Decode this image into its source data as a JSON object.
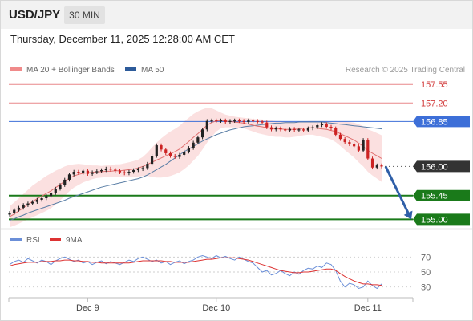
{
  "header": {
    "symbol": "USD/JPY",
    "timeframe": "30 MIN",
    "datetime": "Thursday, December 11, 2025 12:28:00 AM CET"
  },
  "legend": {
    "ma20": "MA 20 + Bollinger Bands",
    "ma50": "MA 50",
    "credit": "Research © 2025 Trading Central"
  },
  "rsi_legend": {
    "rsi": "RSI",
    "ma9": "9MA"
  },
  "colors": {
    "resistance": "#e8878a",
    "pivot": "#3d6fd8",
    "support": "#1a7a1a",
    "current": "#333333",
    "ma20": "#e07070",
    "ma50": "#5b7fa6",
    "bollinger": "#fbe0e0",
    "arrow": "#2f5fa8",
    "candle_up": "#222222",
    "candle_down": "#cc2222",
    "rsi": "#6b8fd8",
    "rsi_ma": "#dd3333"
  },
  "chart_data": [
    {
      "type": "candlestick",
      "title": "USD/JPY 30 MIN",
      "x_ticks": [
        "Dec 9",
        "Dec 10",
        "Dec 11"
      ],
      "ylim": [
        154.93,
        157.72
      ],
      "levels": [
        {
          "label": "157.55",
          "value": 157.55,
          "kind": "resistance"
        },
        {
          "label": "157.20",
          "value": 157.2,
          "kind": "resistance"
        },
        {
          "label": "156.85",
          "value": 156.85,
          "kind": "pivot"
        },
        {
          "label": "156.00",
          "value": 156.0,
          "kind": "current"
        },
        {
          "label": "155.45",
          "value": 155.45,
          "kind": "support"
        },
        {
          "label": "155.00",
          "value": 155.0,
          "kind": "support"
        }
      ],
      "close": [
        155.12,
        155.18,
        155.22,
        155.27,
        155.3,
        155.33,
        155.37,
        155.4,
        155.44,
        155.5,
        155.58,
        155.65,
        155.75,
        155.85,
        155.9,
        155.88,
        155.92,
        155.86,
        155.89,
        155.91,
        155.93,
        155.96,
        155.94,
        155.92,
        155.89,
        155.87,
        155.9,
        155.93,
        155.95,
        155.97,
        156.05,
        156.2,
        156.4,
        156.32,
        156.25,
        156.2,
        156.18,
        156.22,
        156.28,
        156.35,
        156.45,
        156.55,
        156.7,
        156.86,
        156.87,
        156.86,
        156.87,
        156.84,
        156.86,
        156.87,
        156.86,
        156.84,
        156.87,
        156.86,
        156.85,
        156.83,
        156.74,
        156.7,
        156.72,
        156.7,
        156.68,
        156.71,
        156.69,
        156.7,
        156.68,
        156.72,
        156.74,
        156.78,
        156.8,
        156.75,
        156.72,
        156.6,
        156.52,
        156.46,
        156.42,
        156.38,
        156.3,
        156.5,
        156.15,
        155.98,
        156.02,
        156.0
      ],
      "ma20": [
        155.05,
        155.1,
        155.16,
        155.22,
        155.28,
        155.34,
        155.39,
        155.44,
        155.49,
        155.54,
        155.6,
        155.66,
        155.72,
        155.78,
        155.82,
        155.85,
        155.87,
        155.88,
        155.89,
        155.9,
        155.9,
        155.91,
        155.91,
        155.92,
        155.92,
        155.93,
        155.94,
        155.95,
        155.97,
        156.0,
        156.04,
        156.08,
        156.12,
        156.16,
        156.2,
        156.24,
        156.28,
        156.33,
        156.4,
        156.47,
        156.55,
        156.62,
        156.7,
        156.78,
        156.83,
        156.86,
        156.87,
        156.86,
        156.85,
        156.84,
        156.83,
        156.82,
        156.8,
        156.78,
        156.76,
        156.75,
        156.73,
        156.72,
        156.71,
        156.71,
        156.7,
        156.7,
        156.7,
        156.71,
        156.72,
        156.73,
        156.73,
        156.72,
        156.71,
        156.7,
        156.68,
        156.66,
        156.62,
        156.58,
        156.54,
        156.5,
        156.44,
        156.38,
        156.3,
        156.25,
        156.2,
        156.15
      ],
      "ma50": [
        154.98,
        155.01,
        155.05,
        155.08,
        155.12,
        155.15,
        155.18,
        155.21,
        155.24,
        155.27,
        155.3,
        155.33,
        155.36,
        155.4,
        155.43,
        155.46,
        155.49,
        155.52,
        155.55,
        155.58,
        155.61,
        155.63,
        155.65,
        155.67,
        155.69,
        155.71,
        155.73,
        155.75,
        155.77,
        155.8,
        155.84,
        155.89,
        155.94,
        155.99,
        156.04,
        156.1,
        156.16,
        156.22,
        156.28,
        156.33,
        156.38,
        156.43,
        156.48,
        156.52,
        156.56,
        156.6,
        156.63,
        156.66,
        156.69,
        156.71,
        156.73,
        156.75,
        156.76,
        156.77,
        156.78,
        156.79,
        156.8,
        156.81,
        156.82,
        156.82,
        156.83,
        156.83,
        156.83,
        156.84,
        156.84,
        156.84,
        156.84,
        156.84,
        156.84,
        156.83,
        156.82,
        156.81,
        156.8,
        156.79,
        156.78,
        156.77,
        156.76,
        156.75,
        156.74,
        156.73,
        156.72,
        156.71
      ],
      "bb_width": [
        0.2,
        0.22,
        0.24,
        0.26,
        0.28,
        0.3,
        0.31,
        0.32,
        0.33,
        0.33,
        0.32,
        0.3,
        0.28,
        0.25,
        0.22,
        0.2,
        0.17,
        0.15,
        0.13,
        0.12,
        0.11,
        0.11,
        0.11,
        0.12,
        0.12,
        0.13,
        0.14,
        0.15,
        0.16,
        0.18,
        0.22,
        0.28,
        0.33,
        0.37,
        0.4,
        0.42,
        0.43,
        0.44,
        0.45,
        0.45,
        0.44,
        0.42,
        0.38,
        0.33,
        0.27,
        0.2,
        0.15,
        0.12,
        0.11,
        0.1,
        0.1,
        0.1,
        0.11,
        0.12,
        0.13,
        0.14,
        0.14,
        0.15,
        0.15,
        0.15,
        0.15,
        0.15,
        0.14,
        0.14,
        0.13,
        0.13,
        0.13,
        0.14,
        0.15,
        0.16,
        0.17,
        0.2,
        0.23,
        0.27,
        0.3,
        0.33,
        0.36,
        0.38,
        0.4,
        0.42,
        0.43,
        0.44
      ]
    },
    {
      "type": "line",
      "title": "RSI",
      "ylim": [
        20,
        80
      ],
      "y_ticks": [
        30,
        50,
        70
      ],
      "series": [
        {
          "name": "RSI",
          "values": [
            60,
            64,
            66,
            63,
            68,
            65,
            62,
            66,
            64,
            60,
            65,
            68,
            70,
            67,
            64,
            66,
            62,
            64,
            60,
            63,
            65,
            61,
            64,
            62,
            60,
            63,
            66,
            64,
            68,
            70,
            67,
            64,
            66,
            62,
            64,
            60,
            63,
            65,
            61,
            64,
            66,
            70,
            72,
            70,
            68,
            72,
            69,
            71,
            68,
            66,
            70,
            67,
            64,
            62,
            56,
            50,
            52,
            46,
            48,
            52,
            48,
            45,
            50,
            47,
            52,
            55,
            54,
            58,
            56,
            62,
            60,
            52,
            38,
            30,
            35,
            33,
            28,
            30,
            38,
            32,
            28,
            34
          ]
        },
        {
          "name": "9MA",
          "values": [
            58,
            60,
            61,
            62,
            63,
            63,
            63,
            64,
            64,
            64,
            65,
            65,
            66,
            66,
            65,
            65,
            64,
            64,
            63,
            63,
            62,
            62,
            62,
            62,
            62,
            62,
            62,
            63,
            64,
            65,
            65,
            65,
            65,
            65,
            64,
            64,
            63,
            63,
            63,
            63,
            64,
            65,
            66,
            67,
            67,
            68,
            69,
            69,
            69,
            69,
            68,
            67,
            66,
            64,
            62,
            60,
            58,
            56,
            54,
            52,
            51,
            50,
            49,
            49,
            50,
            50,
            51,
            52,
            53,
            54,
            54,
            52,
            48,
            44,
            41,
            38,
            36,
            34,
            34,
            33,
            33,
            32
          ]
        }
      ]
    }
  ]
}
